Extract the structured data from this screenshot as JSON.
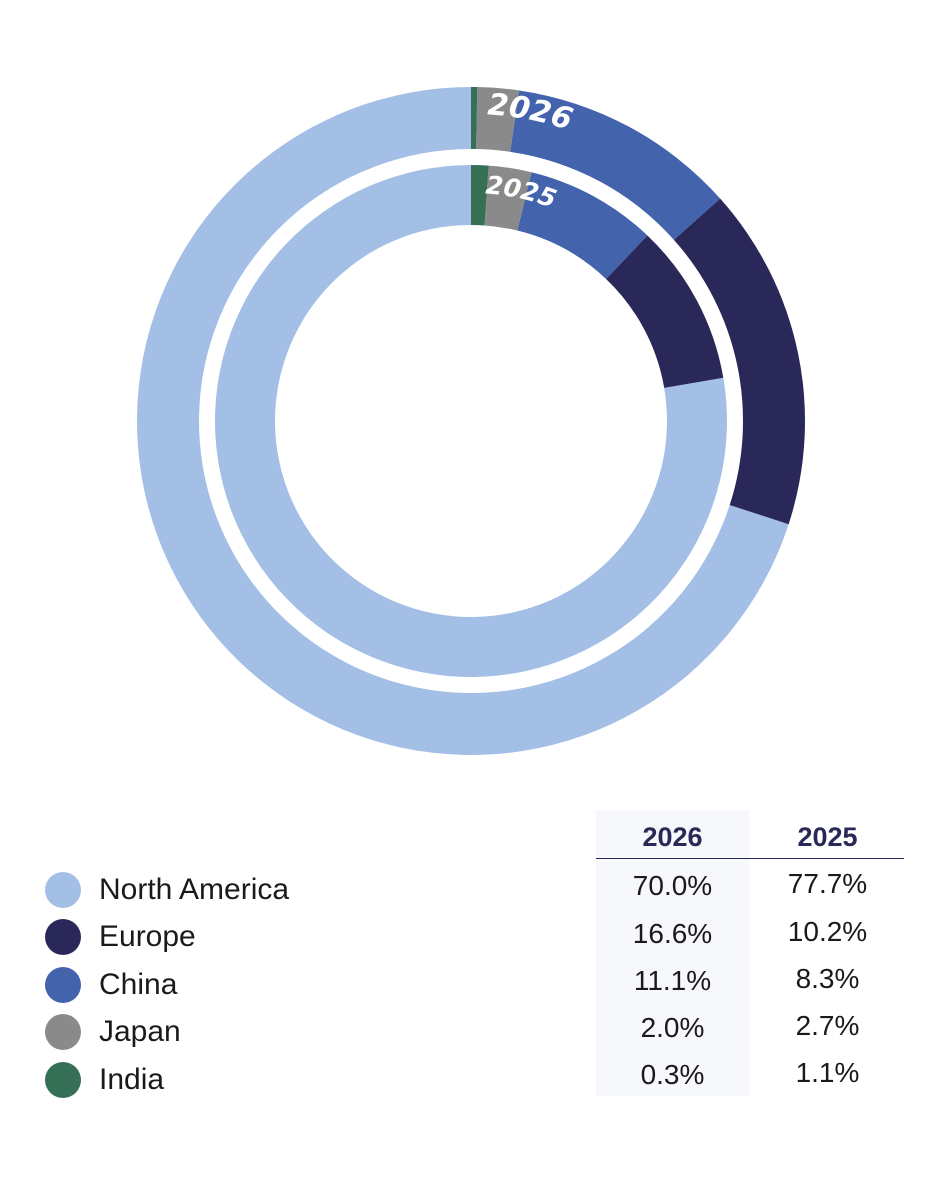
{
  "chart_data": {
    "type": "pie",
    "style": "nested-donut",
    "categories": [
      "North America",
      "Europe",
      "China",
      "Japan",
      "India"
    ],
    "colors": [
      "#a3bfe6",
      "#2a2858",
      "#4363ad",
      "#8a8a8a",
      "#356f56"
    ],
    "series": [
      {
        "name": "2026",
        "ring": "outer",
        "values": [
          70.0,
          16.6,
          11.1,
          2.0,
          0.3
        ],
        "value_labels": [
          "70.0%",
          "16.6%",
          "11.1%",
          "2.0%",
          "0.3%"
        ]
      },
      {
        "name": "2025",
        "ring": "inner",
        "values": [
          77.7,
          10.2,
          8.3,
          2.7,
          1.1
        ],
        "value_labels": [
          "77.7%",
          "10.2%",
          "8.3%",
          "2.7%",
          "1.1%"
        ]
      }
    ],
    "legend_position": "bottom-left"
  }
}
